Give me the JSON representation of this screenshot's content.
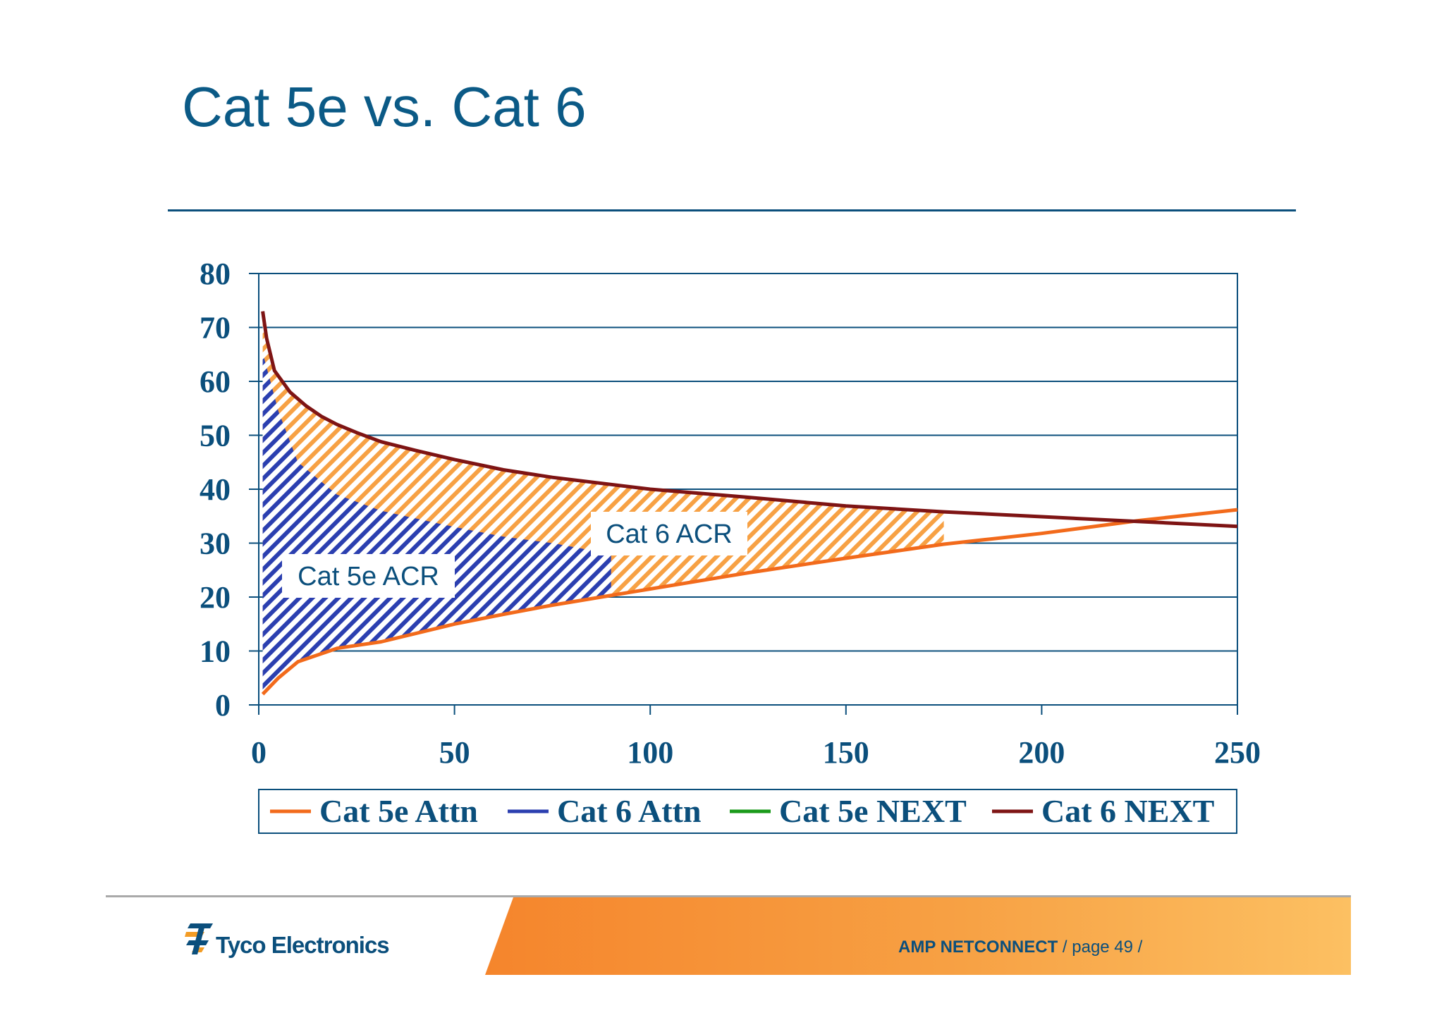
{
  "slide": {
    "title": "Cat 5e vs. Cat 6"
  },
  "chart_data": {
    "type": "line",
    "xlim": [
      0,
      250
    ],
    "ylim": [
      0,
      80
    ],
    "x_ticks": [
      "0",
      "50",
      "100",
      "150",
      "200",
      "250"
    ],
    "y_ticks": [
      "0",
      "10",
      "20",
      "30",
      "40",
      "50",
      "60",
      "70",
      "80"
    ],
    "grid": "horizontal",
    "legend_position": "bottom",
    "series": [
      {
        "name": "Cat 5e Attn",
        "color": "#f26a1b",
        "points": [
          [
            1,
            2
          ],
          [
            5,
            5
          ],
          [
            10,
            8
          ],
          [
            20,
            10.5
          ],
          [
            31.25,
            11.7
          ],
          [
            50,
            15
          ],
          [
            62.5,
            16.8
          ],
          [
            75,
            18.5
          ],
          [
            100,
            21.5
          ],
          [
            125,
            24.5
          ],
          [
            150,
            27.2
          ],
          [
            175,
            29.8
          ],
          [
            200,
            31.8
          ],
          [
            225,
            34.2
          ],
          [
            250,
            36.2
          ]
        ]
      },
      {
        "name": "Cat 6 Attn",
        "color": "#2b3fb0",
        "points": [
          [
            1,
            2
          ],
          [
            5,
            5
          ],
          [
            10,
            8
          ],
          [
            20,
            10.5
          ],
          [
            31.25,
            11.7
          ],
          [
            50,
            15
          ],
          [
            62.5,
            16.8
          ],
          [
            75,
            18.5
          ],
          [
            100,
            21.5
          ],
          [
            125,
            24.5
          ],
          [
            150,
            27.2
          ],
          [
            175,
            29.8
          ],
          [
            200,
            31.8
          ],
          [
            225,
            34.2
          ],
          [
            250,
            36.2
          ]
        ]
      },
      {
        "name": "Cat 5e NEXT",
        "color": "#1a9a1a",
        "points": [
          [
            1,
            65.3
          ],
          [
            5,
            54.5
          ],
          [
            10,
            45
          ],
          [
            20,
            39
          ],
          [
            31.25,
            36
          ],
          [
            50,
            33
          ],
          [
            62.5,
            31.2
          ],
          [
            75,
            30
          ],
          [
            90,
            28
          ]
        ]
      },
      {
        "name": "Cat 6 NEXT",
        "color": "#7e1414",
        "points": [
          [
            1,
            73
          ],
          [
            2,
            68
          ],
          [
            4,
            62
          ],
          [
            8,
            58
          ],
          [
            12,
            55.5
          ],
          [
            16,
            53.5
          ],
          [
            20,
            52
          ],
          [
            25,
            50.5
          ],
          [
            31.25,
            48.8
          ],
          [
            40,
            47.2
          ],
          [
            50,
            45.5
          ],
          [
            62.5,
            43.6
          ],
          [
            75,
            42.2
          ],
          [
            100,
            40
          ],
          [
            125,
            38.5
          ],
          [
            150,
            36.9
          ],
          [
            175,
            35.8
          ],
          [
            200,
            34.9
          ],
          [
            225,
            34
          ],
          [
            250,
            33.1
          ]
        ]
      }
    ],
    "annotations": [
      {
        "label": "Cat 5e ACR",
        "x": 28,
        "y": 24
      },
      {
        "label": "Cat 6 ACR",
        "x": 105,
        "y": 32
      }
    ]
  },
  "footer": {
    "company": "Tyco Electronics",
    "brand": "AMP NETCONNECT",
    "page_text": "/ page 49 /"
  },
  "colors": {
    "title": "#0b5a86",
    "axis": "#0b4f7c",
    "cat5e_acr_fill": "#2b3fb0",
    "cat6_acr_fill": "#f7a144",
    "footer_band": "#f5852c"
  }
}
